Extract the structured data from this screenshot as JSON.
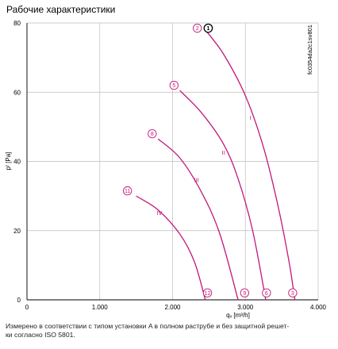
{
  "title": "Рабочие характеристики",
  "footnote": {
    "line1": "Измерено в соответствии с типом установки A в полном раструбе и без защитной решет-",
    "line2": "ки согласно ISO 5801."
  },
  "colors": {
    "curve": "#c2187a",
    "grid": "#bdbdbd",
    "axis": "#000000"
  },
  "chart_data": {
    "type": "line",
    "xlabel": "qᵥ [m³/h]",
    "ylabel": "pᶠ [Pa]",
    "xlim": [
      0,
      4000
    ],
    "ylim": [
      0,
      80
    ],
    "x_ticks": [
      0,
      1000,
      2000,
      3000,
      4000
    ],
    "x_tick_labels": [
      "0",
      "1.000",
      "2.000",
      "3.000",
      "4.000"
    ],
    "y_ticks": [
      0,
      20,
      40,
      60,
      80
    ],
    "y_tick_labels": [
      "0",
      "20",
      "40",
      "60",
      "80"
    ],
    "grid": true,
    "side_code": "fc0354da2c1sv801",
    "series": [
      {
        "name": "I",
        "label_pos": [
          3070,
          52
        ],
        "points": [
          [
            2450,
            78
          ],
          [
            2700,
            71
          ],
          [
            3000,
            59
          ],
          [
            3250,
            44
          ],
          [
            3450,
            27
          ],
          [
            3600,
            11
          ],
          [
            3680,
            0
          ]
        ]
      },
      {
        "name": "II",
        "label_pos": [
          2700,
          42
        ],
        "points": [
          [
            2100,
            60.5
          ],
          [
            2400,
            54
          ],
          [
            2700,
            45
          ],
          [
            2900,
            35
          ],
          [
            3100,
            20
          ],
          [
            3280,
            0
          ]
        ]
      },
      {
        "name": "III",
        "label_pos": [
          2330,
          34
        ],
        "points": [
          [
            1800,
            46.5
          ],
          [
            2100,
            41
          ],
          [
            2400,
            31
          ],
          [
            2650,
            19
          ],
          [
            2900,
            0
          ]
        ]
      },
      {
        "name": "IV",
        "label_pos": [
          1820,
          24.5
        ],
        "points": [
          [
            1500,
            30
          ],
          [
            1800,
            26
          ],
          [
            2100,
            19
          ],
          [
            2300,
            11
          ],
          [
            2450,
            0
          ]
        ]
      }
    ],
    "operating_points": [
      {
        "label": "1",
        "x": 2490,
        "y": 78.5,
        "style": "black"
      },
      {
        "label": "2",
        "x": 2340,
        "y": 78.5
      },
      {
        "label": "3",
        "x": 3650,
        "y": 2
      },
      {
        "label": "5",
        "x": 2020,
        "y": 62
      },
      {
        "label": "6",
        "x": 3290,
        "y": 2
      },
      {
        "label": "8",
        "x": 1720,
        "y": 48
      },
      {
        "label": "9",
        "x": 2990,
        "y": 2
      },
      {
        "label": "11",
        "x": 1380,
        "y": 31.5
      },
      {
        "label": "12",
        "x": 2480,
        "y": 2
      }
    ]
  }
}
